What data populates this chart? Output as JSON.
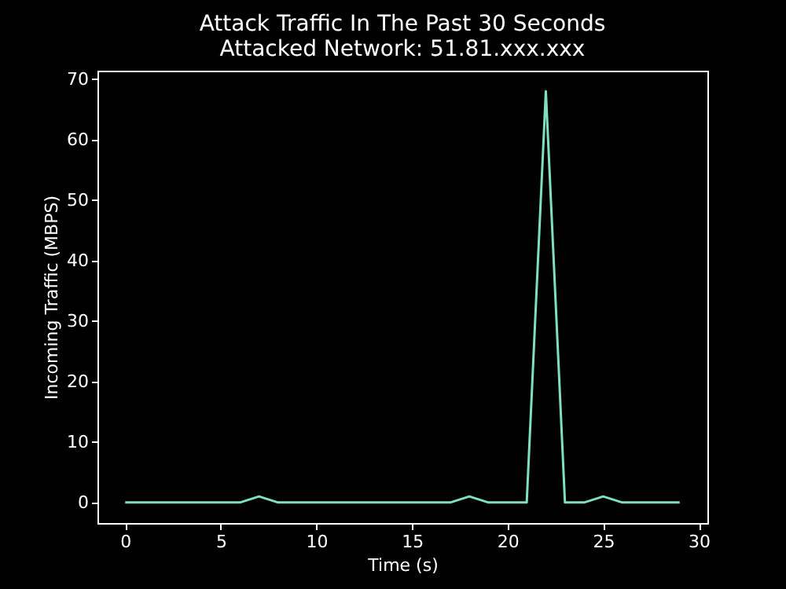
{
  "chart_data": {
    "type": "line",
    "title": "Attack Traffic In The Past 30 Seconds",
    "subtitle": "Attacked Network: 51.81.xxx.xxx",
    "xlabel": "Time (s)",
    "ylabel": "Incoming Traffic (MBPS)",
    "x": [
      0,
      1,
      2,
      3,
      4,
      5,
      6,
      7,
      8,
      9,
      10,
      11,
      12,
      13,
      14,
      15,
      16,
      17,
      18,
      19,
      20,
      21,
      22,
      23,
      24,
      25,
      26,
      27,
      28,
      29
    ],
    "series": [
      {
        "color": "#7fdfc0",
        "values": [
          0,
          0,
          0,
          0,
          0,
          0,
          0,
          1,
          0,
          0,
          0,
          0,
          0,
          0,
          0,
          0,
          0,
          0,
          1,
          0,
          0,
          0,
          68,
          0,
          0,
          1,
          0,
          0,
          0,
          0
        ]
      }
    ],
    "xlim": [
      -1.45,
      30.45
    ],
    "ylim": [
      -3.4,
      71.4
    ],
    "xticks": [
      0,
      5,
      10,
      15,
      20,
      25,
      30
    ],
    "yticks": [
      0,
      10,
      20,
      30,
      40,
      50,
      60,
      70
    ],
    "grid": false,
    "marker": "none"
  }
}
